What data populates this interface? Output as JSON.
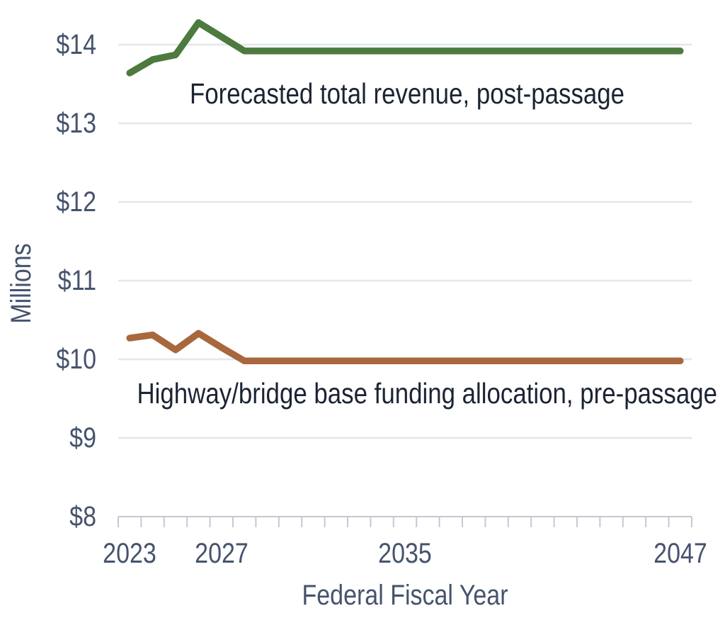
{
  "chart_data": {
    "type": "line",
    "title": "",
    "xlabel": "Federal Fiscal Year",
    "ylabel": "Millions",
    "x_range": [
      2023,
      2047
    ],
    "years": [
      2023,
      2024,
      2025,
      2026,
      2027,
      2028,
      2029,
      2030,
      2031,
      2032,
      2033,
      2034,
      2035,
      2036,
      2037,
      2038,
      2039,
      2040,
      2041,
      2042,
      2043,
      2044,
      2045,
      2046,
      2047
    ],
    "ylim": [
      8,
      14
    ],
    "grid": "horizontal",
    "legend_position": "inline-annotations",
    "yticks": [
      {
        "label": "$14",
        "value": 14
      },
      {
        "label": "$13",
        "value": 13
      },
      {
        "label": "$12",
        "value": 12
      },
      {
        "label": "$11",
        "value": 11
      },
      {
        "label": "$10",
        "value": 10
      },
      {
        "label": "$9",
        "value": 9
      },
      {
        "label": "$8",
        "value": 8
      }
    ],
    "xticks": [
      {
        "label": "2023",
        "year": 2023
      },
      {
        "label": "2027",
        "year": 2027
      },
      {
        "label": "2035",
        "year": 2035
      },
      {
        "label": "2047",
        "year": 2047
      }
    ],
    "series": [
      {
        "name": "Forecasted total revenue, post-passage",
        "color": "#4d7a3e",
        "values": [
          13.64,
          13.81,
          13.87,
          14.28,
          14.1,
          13.92,
          13.92,
          13.92,
          13.92,
          13.92,
          13.92,
          13.92,
          13.92,
          13.92,
          13.92,
          13.92,
          13.92,
          13.92,
          13.92,
          13.92,
          13.92,
          13.92,
          13.92,
          13.92,
          13.92
        ]
      },
      {
        "name": "Highway/bridge base funding allocation, pre-passage",
        "color": "#a8673c",
        "values": [
          10.27,
          10.31,
          10.12,
          10.33,
          10.15,
          9.98,
          9.98,
          9.98,
          9.98,
          9.98,
          9.98,
          9.98,
          9.98,
          9.98,
          9.98,
          9.98,
          9.98,
          9.98,
          9.98,
          9.98,
          9.98,
          9.98,
          9.98,
          9.98,
          9.98
        ]
      }
    ]
  },
  "colors": {
    "background": "#ffffff",
    "tick_label": "#46536d",
    "series_label": "#1b2433",
    "gridline": "#e5e6e9",
    "axis_line": "#c3c9d2"
  }
}
